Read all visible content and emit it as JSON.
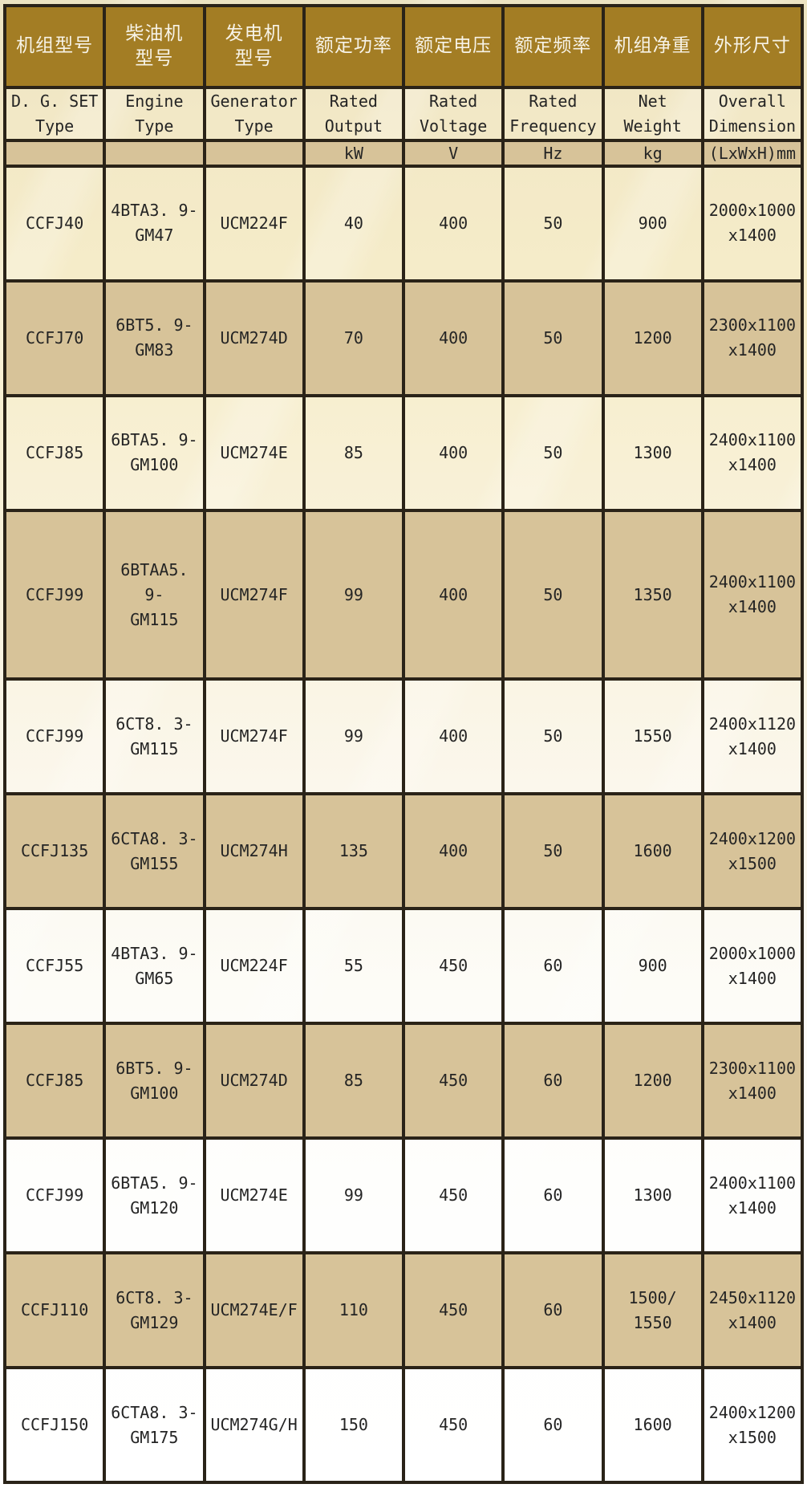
{
  "table": {
    "columns": [
      {
        "zh": "机组型号",
        "en": "D. G. SET\nType",
        "unit": ""
      },
      {
        "zh": "柴油机\n型号",
        "en": "Engine\nType",
        "unit": ""
      },
      {
        "zh": "发电机\n型号",
        "en": "Generator\nType",
        "unit": ""
      },
      {
        "zh": "额定功率",
        "en": "Rated\nOutput",
        "unit": "kW"
      },
      {
        "zh": "额定电压",
        "en": "Rated\nVoltage",
        "unit": "V"
      },
      {
        "zh": "额定频率",
        "en": "Rated\nFrequency",
        "unit": "Hz"
      },
      {
        "zh": "机组净重",
        "en": "Net\nWeight",
        "unit": "kg"
      },
      {
        "zh": "外形尺寸",
        "en": "Overall\nDimension",
        "unit": "(LxWxH)mm"
      }
    ],
    "rows": [
      [
        "CCFJ40",
        "4BTA3. 9-\nGM47",
        "UCM224F",
        "40",
        "400",
        "50",
        "900",
        "2000x1000\nx1400"
      ],
      [
        "CCFJ70",
        "6BT5. 9-\nGM83",
        "UCM274D",
        "70",
        "400",
        "50",
        "1200",
        "2300x1100\nx1400"
      ],
      [
        "CCFJ85",
        "6BTA5. 9-\nGM100",
        "UCM274E",
        "85",
        "400",
        "50",
        "1300",
        "2400x1100\nx1400"
      ],
      [
        "CCFJ99",
        "6BTAA5. 9-\nGM115",
        "UCM274F",
        "99",
        "400",
        "50",
        "1350",
        "2400x1100\nx1400"
      ],
      [
        "CCFJ99",
        "6CT8. 3-\nGM115",
        "UCM274F",
        "99",
        "400",
        "50",
        "1550",
        "2400x1120\nx1400"
      ],
      [
        "CCFJ135",
        "6CTA8. 3-\nGM155",
        "UCM274H",
        "135",
        "400",
        "50",
        "1600",
        "2400x1200\nx1500"
      ],
      [
        "CCFJ55",
        "4BTA3. 9-\nGM65",
        "UCM224F",
        "55",
        "450",
        "60",
        "900",
        "2000x1000\nx1400"
      ],
      [
        "CCFJ85",
        "6BT5. 9-\nGM100",
        "UCM274D",
        "85",
        "450",
        "60",
        "1200",
        "2300x1100\nx1400"
      ],
      [
        "CCFJ99",
        "6BTA5. 9-\nGM120",
        "UCM274E",
        "99",
        "450",
        "60",
        "1300",
        "2400x1100\nx1400"
      ],
      [
        "CCFJ110",
        "6CT8. 3-\nGM129",
        "UCM274E/F",
        "110",
        "450",
        "60",
        "1500/\n1550",
        "2450x1120\nx1400"
      ],
      [
        "CCFJ150",
        "6CTA8. 3-\nGM175",
        "UCM274G/H",
        "150",
        "450",
        "60",
        "1600",
        "2400x1200\nx1500"
      ]
    ],
    "row_shading": [
      "light",
      "tan",
      "light",
      "tan",
      "light",
      "tan",
      "light",
      "tan",
      "light",
      "tan",
      "light"
    ]
  },
  "colors": {
    "header_bg": "#a37d24",
    "header_text": "#f7f3e7",
    "border": "#2a2318",
    "tan_row": "#d7c399",
    "text": "#242424",
    "page_top": "#ece3c2",
    "page_bottom": "#ffffff"
  }
}
